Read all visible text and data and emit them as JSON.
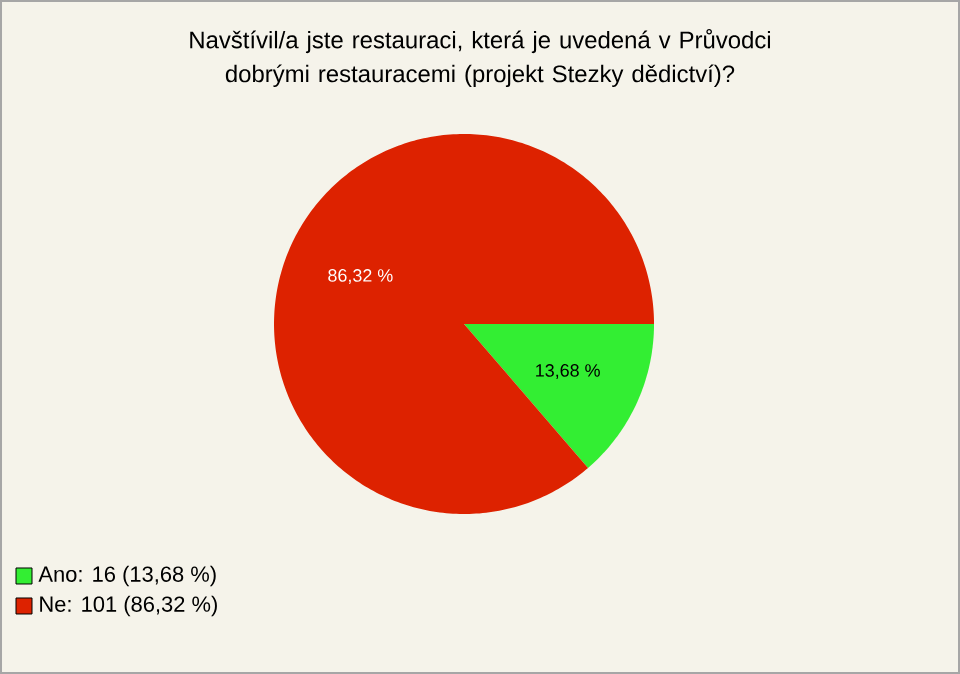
{
  "chart_data": {
    "type": "pie",
    "title": "Navštívil/a jste restauraci, která je uvedená v Průvodci dobrými restauracemi (projekt Stezky dědictví)?",
    "categories": [
      "Ano: 16 (13,68 %)",
      "Ne: 101 (86,32 %)"
    ],
    "values": [
      13.68,
      86.32
    ],
    "value_labels": [
      "13,68 %",
      "86,32 %"
    ],
    "colors": [
      "#33ee33",
      "#dd2200"
    ],
    "legend": "bottom left"
  }
}
